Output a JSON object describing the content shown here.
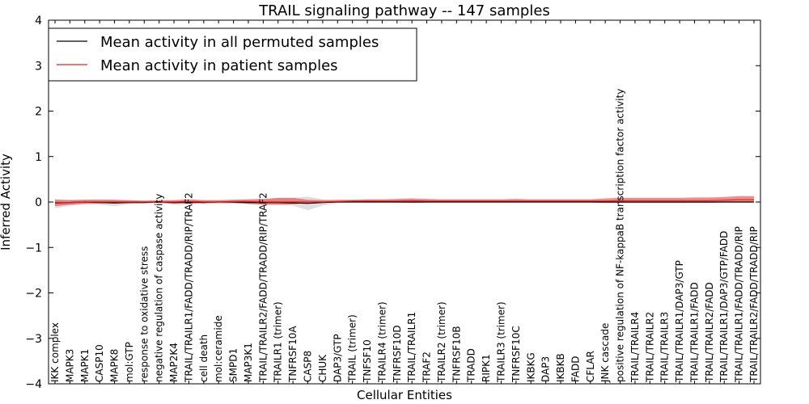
{
  "chart_data": {
    "type": "line",
    "title": "TRAIL signaling pathway -- 147 samples",
    "xlabel": "Cellular Entities",
    "ylabel": "Inferred Activity",
    "ylim": [
      -4,
      4
    ],
    "yticks": [
      -4,
      -3,
      -2,
      -1,
      0,
      1,
      2,
      3,
      4
    ],
    "ytick_labels": [
      "−4",
      "−3",
      "−2",
      "−1",
      "0",
      "1",
      "2",
      "3",
      "4"
    ],
    "grid": false,
    "legend_position": "top-left",
    "categories": [
      "IKK complex",
      "MAPK3",
      "MAPK1",
      "CASP10",
      "MAPK8",
      "mol:GTP",
      "response to oxidative stress",
      "negative regulation of caspase activity",
      "MAP2K4",
      "TRAIL/TRAILR1/FADD/TRADD/RIP/TRAF2",
      "cell death",
      "mol:ceramide",
      "SMPD1",
      "MAP3K1",
      "TRAIL/TRAILR2/FADD/TRADD/RIP/TRAF2",
      "TRAILR1 (trimer)",
      "TNFRSF10A",
      "CASP8",
      "CHUK",
      "DAP3/GTP",
      "TRAIL (trimer)",
      "TNFSF10",
      "TRAILR4 (trimer)",
      "TNFRSF10D",
      "TRAIL/TRAILR1",
      "TRAF2",
      "TRAILR2 (trimer)",
      "TNFRSF10B",
      "TRADD",
      "RIPK1",
      "TRAILR3 (trimer)",
      "TNFRSF10C",
      "IKBKG",
      "DAP3",
      "IKBKB",
      "FADD",
      "CFLAR",
      "JNK cascade",
      "positive regulation of NF-kappaB transcription factor activity",
      "TRAIL/TRAILR4",
      "TRAIL/TRAILR2",
      "TRAIL/TRAILR3",
      "TRAIL/TRAILR1/DAP3/GTP",
      "TRAIL/TRAILR1/FADD",
      "TRAIL/TRAILR2/FADD",
      "TRAIL/TRAILR1/DAP3/GTP/FADD",
      "TRAIL/TRAILR1/FADD/TRADD/RIP",
      "TRAIL/TRAILR2/FADD/TRADD/RIP"
    ],
    "series": [
      {
        "name": "Mean activity in all permuted samples",
        "color": "#000000",
        "values": [
          -0.02,
          -0.01,
          0,
          -0.01,
          -0.02,
          -0.01,
          -0.01,
          0,
          -0.01,
          0,
          -0.01,
          0,
          0,
          -0.01,
          -0.01,
          -0.01,
          -0.02,
          -0.03,
          -0.01,
          0,
          0,
          0,
          0,
          0,
          0,
          0,
          0,
          0,
          0,
          0,
          0,
          0,
          0,
          0,
          0,
          0,
          0,
          0,
          0,
          0,
          0,
          0,
          0,
          0,
          0,
          0,
          0,
          0
        ],
        "band_lower": [
          -0.14,
          -0.08,
          -0.05,
          -0.06,
          -0.09,
          -0.05,
          -0.04,
          -0.02,
          -0.05,
          -0.04,
          -0.05,
          -0.04,
          -0.04,
          -0.05,
          -0.05,
          -0.06,
          -0.08,
          -0.18,
          -0.08,
          -0.02,
          -0.01,
          -0.01,
          -0.01,
          -0.01,
          -0.01,
          -0.01,
          -0.01,
          -0.01,
          -0.01,
          -0.01,
          -0.01,
          -0.01,
          -0.01,
          -0.01,
          -0.01,
          -0.01,
          -0.01,
          -0.01,
          -0.01,
          -0.01,
          -0.01,
          -0.01,
          -0.01,
          -0.01,
          -0.01,
          -0.01,
          -0.01,
          -0.01
        ],
        "band_upper": [
          0.07,
          0.05,
          0.05,
          0.06,
          0.05,
          0.03,
          0.02,
          0.02,
          0.03,
          0.03,
          0.04,
          0.04,
          0.04,
          0.04,
          0.05,
          0.08,
          0.09,
          0.12,
          0.06,
          0.02,
          0.01,
          0.01,
          0.01,
          0.01,
          0.01,
          0.01,
          0.01,
          0.01,
          0.01,
          0.01,
          0.01,
          0.01,
          0.01,
          0.01,
          0.01,
          0.01,
          0.01,
          0.01,
          0.01,
          0.01,
          0.01,
          0.01,
          0.01,
          0.01,
          0.01,
          0.01,
          0.01,
          0.01
        ]
      },
      {
        "name": "Mean activity in patient samples",
        "color": "#d62728",
        "values": [
          -0.01,
          -0.01,
          0,
          0,
          0,
          0,
          0,
          0,
          0,
          0.01,
          0,
          0,
          0.01,
          0.01,
          0,
          0,
          0,
          0,
          0,
          0.01,
          0.02,
          0.02,
          0.02,
          0.02,
          0.03,
          0.02,
          0.02,
          0.02,
          0.02,
          0.02,
          0.02,
          0.02,
          0.02,
          0.02,
          0.02,
          0.02,
          0.02,
          0.02,
          0.03,
          0.03,
          0.03,
          0.03,
          0.03,
          0.03,
          0.03,
          0.04,
          0.05,
          0.05
        ],
        "band_lower": [
          -0.09,
          -0.06,
          -0.04,
          -0.03,
          -0.03,
          -0.02,
          -0.01,
          -0.02,
          -0.04,
          -0.04,
          -0.02,
          -0.02,
          -0.02,
          -0.04,
          -0.06,
          -0.06,
          -0.05,
          -0.02,
          -0.01,
          -0.01,
          0,
          -0.01,
          -0.01,
          -0.01,
          -0.02,
          -0.01,
          -0.01,
          -0.01,
          -0.01,
          -0.01,
          -0.01,
          -0.01,
          -0.01,
          -0.01,
          -0.01,
          -0.01,
          -0.01,
          -0.02,
          -0.02,
          -0.02,
          -0.02,
          -0.02,
          -0.02,
          -0.02,
          -0.02,
          -0.01,
          -0.01,
          -0.01
        ],
        "band_upper": [
          0.05,
          0.04,
          0.05,
          0.05,
          0.05,
          0.04,
          0.03,
          0.04,
          0.04,
          0.06,
          0.04,
          0.04,
          0.05,
          0.06,
          0.07,
          0.09,
          0.09,
          0.05,
          0.04,
          0.05,
          0.05,
          0.06,
          0.06,
          0.07,
          0.08,
          0.07,
          0.06,
          0.06,
          0.06,
          0.06,
          0.06,
          0.07,
          0.06,
          0.06,
          0.06,
          0.06,
          0.06,
          0.08,
          0.09,
          0.09,
          0.09,
          0.09,
          0.09,
          0.1,
          0.1,
          0.11,
          0.13,
          0.13
        ]
      }
    ]
  }
}
